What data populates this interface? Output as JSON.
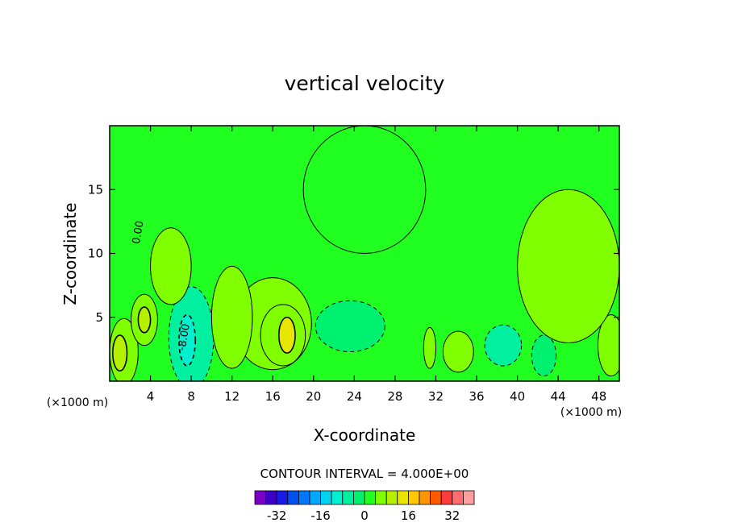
{
  "chart_data": {
    "type": "heatmap",
    "title": "vertical velocity",
    "xlabel": "X-coordinate",
    "ylabel": "Z-coordinate",
    "x_unit": "(×1000 m)",
    "y_unit": "(×1000 m)",
    "xlim": [
      0,
      50
    ],
    "ylim": [
      0,
      20
    ],
    "x_ticks": [
      4,
      8,
      12,
      16,
      20,
      24,
      28,
      32,
      36,
      40,
      44,
      48
    ],
    "y_ticks": [
      5,
      10,
      15
    ],
    "contour_interval_label": "CONTOUR INTERVAL = 4.000E+00",
    "contour_interval": 4.0,
    "contour_labels": [
      {
        "text": "0.00",
        "x": 3.1,
        "y": 11.6
      },
      {
        "text": "-8.00",
        "x": 7.6,
        "y": 3.4
      }
    ],
    "colorbar": {
      "levels": [
        -36,
        -32,
        -28,
        -24,
        -20,
        -16,
        -12,
        -8,
        -4,
        0,
        4,
        8,
        12,
        16,
        20,
        24,
        28,
        32,
        36
      ],
      "colors": [
        "#7a00c8",
        "#3c00c8",
        "#1a1ae6",
        "#0050f0",
        "#0078ff",
        "#00a8ff",
        "#00d2f0",
        "#00f0d0",
        "#00f0a0",
        "#00f070",
        "#20ff20",
        "#80ff00",
        "#b4f000",
        "#e6e600",
        "#ffc800",
        "#ff9600",
        "#ff5a00",
        "#ff3c3c",
        "#ff6e6e",
        "#ff9e9e"
      ],
      "tick_labels": [
        "-32",
        "-16",
        "0",
        "16",
        "32"
      ],
      "tick_values": [
        -32,
        -16,
        0,
        16,
        32
      ]
    },
    "field_regions": [
      {
        "value": 0,
        "x": 25,
        "y": 15,
        "rx": 6,
        "ry": 5
      },
      {
        "value": 6,
        "x": 1.4,
        "y": 2.3,
        "rx": 1.4,
        "ry": 2.6
      },
      {
        "value": 10,
        "x": 1.0,
        "y": 2.2,
        "rx": 0.7,
        "ry": 1.4
      },
      {
        "value": 6,
        "x": 3.4,
        "y": 4.8,
        "rx": 1.3,
        "ry": 2.0
      },
      {
        "value": 10,
        "x": 3.4,
        "y": 4.8,
        "rx": 0.6,
        "ry": 1.0
      },
      {
        "value": -6,
        "x": 8.0,
        "y": 3.4,
        "rx": 2.2,
        "ry": 4.0
      },
      {
        "value": -10,
        "x": 7.6,
        "y": 3.2,
        "rx": 0.8,
        "ry": 2.0
      },
      {
        "value": 4,
        "x": 16.0,
        "y": 4.5,
        "rx": 3.8,
        "ry": 3.6
      },
      {
        "value": 6,
        "x": 17.0,
        "y": 3.6,
        "rx": 2.2,
        "ry": 2.4
      },
      {
        "value": 12,
        "x": 17.4,
        "y": 3.6,
        "rx": 0.8,
        "ry": 1.4
      },
      {
        "value": -4,
        "x": 23.6,
        "y": 4.3,
        "rx": 3.4,
        "ry": 2.0
      },
      {
        "value": 6,
        "x": 31.4,
        "y": 2.6,
        "rx": 0.6,
        "ry": 1.6
      },
      {
        "value": 6,
        "x": 34.2,
        "y": 2.3,
        "rx": 1.5,
        "ry": 1.6
      },
      {
        "value": -6,
        "x": 38.6,
        "y": 2.8,
        "rx": 1.8,
        "ry": 1.6
      },
      {
        "value": -4,
        "x": 42.6,
        "y": 2.0,
        "rx": 1.2,
        "ry": 1.6
      },
      {
        "value": 6,
        "x": 49.2,
        "y": 2.8,
        "rx": 1.3,
        "ry": 2.4
      },
      {
        "value": 4,
        "x": 6.0,
        "y": 9.0,
        "rx": 2.0,
        "ry": 3.0
      },
      {
        "value": 4,
        "x": 12.0,
        "y": 5.0,
        "rx": 2.0,
        "ry": 4.0
      },
      {
        "value": 4,
        "x": 45.0,
        "y": 9.0,
        "rx": 5.0,
        "ry": 6.0
      }
    ],
    "grid": false
  }
}
